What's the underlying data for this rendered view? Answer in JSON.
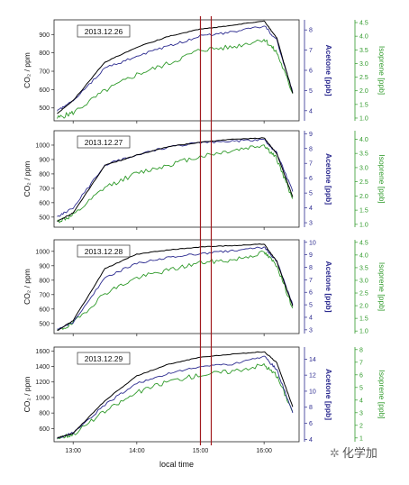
{
  "chart_data": {
    "type": "line",
    "xlabel": "local time",
    "x_tick_labels": [
      "13:00",
      "14:00",
      "15:00",
      "16:00"
    ],
    "x_range_hours": [
      12.7,
      16.55
    ],
    "x_ticks_hours": [
      13,
      14,
      15,
      16
    ],
    "markers": [
      15.0,
      15.17
    ],
    "marker_color": "#a0181c",
    "left_axis_label": "CO₂ / ppm",
    "acetone_axis_label": "Acetone [ppb]",
    "isoprene_axis_label": "Isoprene [ppb]",
    "colors": {
      "co2": "#000000",
      "acetone": "#2b2a8f",
      "isoprene": "#2f9a2a"
    },
    "panels": [
      {
        "date": "2013.12.26",
        "co2_ylim": [
          430,
          980
        ],
        "co2_ticks": [
          500,
          600,
          700,
          800,
          900
        ],
        "acetone_ylim": [
          3.5,
          8.5
        ],
        "acetone_ticks": [
          4,
          5,
          6,
          7,
          8
        ],
        "isoprene_ylim": [
          0.9,
          4.6
        ],
        "isoprene_ticks": [
          1.0,
          1.5,
          2.0,
          2.5,
          3.0,
          3.5,
          4.0,
          4.5
        ],
        "series": {
          "co2": {
            "x": [
              12.75,
              13.0,
              13.5,
              14.0,
              14.5,
              15.0,
              15.5,
              16.0,
              16.2,
              16.45
            ],
            "y": [
              470,
              540,
              750,
              830,
              890,
              930,
              950,
              975,
              880,
              580
            ]
          },
          "acetone": {
            "x": [
              12.75,
              13.0,
              13.5,
              14.0,
              14.5,
              15.0,
              15.5,
              16.0,
              16.2,
              16.45
            ],
            "y": [
              4.0,
              4.5,
              6.1,
              6.7,
              7.2,
              7.7,
              7.9,
              8.2,
              7.5,
              4.9
            ]
          },
          "isoprene": {
            "x": [
              12.75,
              13.0,
              13.5,
              14.0,
              14.5,
              15.0,
              15.5,
              16.0,
              16.2,
              16.45
            ],
            "y": [
              1.0,
              1.2,
              2.0,
              2.6,
              3.0,
              3.5,
              3.6,
              3.9,
              3.4,
              1.9
            ]
          }
        }
      },
      {
        "date": "2013.12.27",
        "co2_ylim": [
          430,
          1100
        ],
        "co2_ticks": [
          500,
          600,
          700,
          800,
          900,
          1000
        ],
        "acetone_ylim": [
          2.7,
          9.2
        ],
        "acetone_ticks": [
          3,
          4,
          5,
          6,
          7,
          8,
          9
        ],
        "isoprene_ylim": [
          0.9,
          4.3
        ],
        "isoprene_ticks": [
          1.0,
          1.5,
          2.0,
          2.5,
          3.0,
          3.5,
          4.0
        ],
        "series": {
          "co2": {
            "x": [
              12.75,
              13.0,
              13.5,
              14.0,
              14.5,
              15.0,
              15.5,
              16.0,
              16.2,
              16.45
            ],
            "y": [
              470,
              530,
              860,
              930,
              990,
              1020,
              1040,
              1050,
              940,
              640
            ]
          },
          "acetone": {
            "x": [
              12.75,
              13.0,
              13.5,
              14.0,
              14.5,
              15.0,
              15.5,
              16.0,
              16.2,
              16.45
            ],
            "y": [
              3.4,
              4.0,
              6.9,
              7.6,
              8.1,
              8.4,
              8.5,
              8.6,
              7.7,
              5.1
            ]
          },
          "isoprene": {
            "x": [
              12.75,
              13.0,
              13.5,
              14.0,
              14.5,
              15.0,
              15.5,
              16.0,
              16.2,
              16.45
            ],
            "y": [
              1.1,
              1.3,
              2.3,
              2.8,
              3.1,
              3.4,
              3.6,
              3.8,
              3.3,
              1.9
            ]
          }
        }
      },
      {
        "date": "2013.12.28",
        "co2_ylim": [
          430,
          1080
        ],
        "co2_ticks": [
          500,
          600,
          700,
          800,
          900,
          1000
        ],
        "acetone_ylim": [
          2.7,
          10.2
        ],
        "acetone_ticks": [
          3,
          4,
          5,
          6,
          7,
          8,
          9,
          10
        ],
        "isoprene_ylim": [
          0.9,
          4.6
        ],
        "isoprene_ticks": [
          1.0,
          1.5,
          2.0,
          2.5,
          3.0,
          3.5,
          4.0,
          4.5
        ],
        "series": {
          "co2": {
            "x": [
              12.75,
              13.0,
              13.5,
              14.0,
              14.5,
              15.0,
              15.5,
              16.0,
              16.2,
              16.45
            ],
            "y": [
              450,
              520,
              880,
              980,
              1010,
              1030,
              1040,
              1050,
              930,
              620
            ]
          },
          "acetone": {
            "x": [
              12.75,
              13.0,
              13.5,
              14.0,
              14.5,
              15.0,
              15.5,
              16.0,
              16.2,
              16.45
            ],
            "y": [
              3.0,
              3.6,
              7.2,
              8.3,
              8.8,
              9.1,
              9.3,
              9.6,
              8.5,
              5.0
            ]
          },
          "isoprene": {
            "x": [
              12.75,
              13.0,
              13.5,
              14.0,
              14.5,
              15.0,
              15.5,
              16.0,
              16.2,
              16.45
            ],
            "y": [
              1.0,
              1.3,
              2.5,
              3.1,
              3.4,
              3.7,
              3.8,
              4.1,
              3.6,
              1.9
            ]
          }
        }
      },
      {
        "date": "2013.12.29",
        "co2_ylim": [
          430,
          1650
        ],
        "co2_ticks": [
          600,
          800,
          1000,
          1200,
          1400,
          1600
        ],
        "acetone_ylim": [
          3.7,
          15.5
        ],
        "acetone_ticks": [
          4,
          6,
          8,
          10,
          12,
          14
        ],
        "isoprene_ylim": [
          0.7,
          8.2
        ],
        "isoprene_ticks": [
          1,
          2,
          3,
          4,
          5,
          6,
          7,
          8
        ],
        "series": {
          "co2": {
            "x": [
              12.75,
              13.0,
              13.5,
              14.0,
              14.5,
              15.0,
              15.5,
              16.0,
              16.2,
              16.45
            ],
            "y": [
              480,
              540,
              960,
              1280,
              1430,
              1520,
              1560,
              1590,
              1450,
              880
            ]
          },
          "acetone": {
            "x": [
              12.75,
              13.0,
              13.5,
              14.0,
              14.5,
              15.0,
              15.5,
              16.0,
              16.2,
              16.45
            ],
            "y": [
              4.2,
              4.8,
              8.3,
              11.0,
              12.2,
              13.0,
              13.4,
              14.3,
              12.7,
              7.3
            ]
          },
          "isoprene": {
            "x": [
              12.75,
              13.0,
              13.5,
              14.0,
              14.5,
              15.0,
              15.5,
              16.0,
              16.2,
              16.45
            ],
            "y": [
              1.0,
              1.3,
              3.1,
              4.6,
              5.5,
              6.0,
              6.3,
              6.8,
              5.9,
              3.1
            ]
          }
        }
      }
    ]
  },
  "watermark": {
    "icon": "recycle-icon",
    "text": "化学加"
  }
}
